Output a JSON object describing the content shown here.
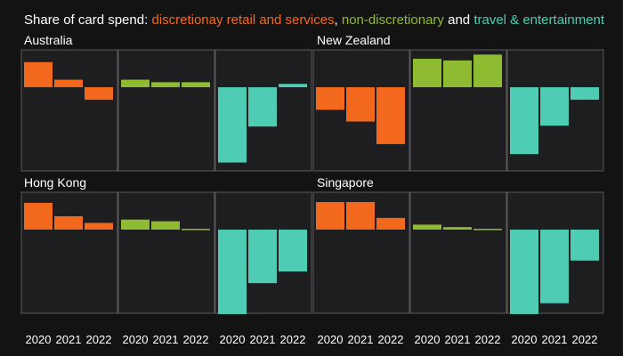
{
  "chart_data": {
    "type": "bar",
    "title": {
      "prefix": "Share of card spend: ",
      "series_1": "discretionay retail and services",
      "sep_1": ", ",
      "series_2": "non-discretionary",
      "sep_2": " and ",
      "series_3": "travel & entertainment"
    },
    "categories": [
      "2020",
      "2021",
      "2022"
    ],
    "ylim": [
      -10,
      4
    ],
    "colors": {
      "background": "#131313",
      "panel": "#1e1d1f",
      "frame": "#5a5a5a",
      "text": "#ffffff",
      "discretionary": "#f2691e",
      "non_discretionary": "#8fbb32",
      "travel": "#4ecdb4"
    },
    "regions": [
      {
        "name": "Australia",
        "series": [
          {
            "name": "discretionay retail and services",
            "values": [
              3.0,
              0.9,
              -1.5
            ]
          },
          {
            "name": "non-discretionary",
            "values": [
              0.9,
              0.6,
              0.6
            ]
          },
          {
            "name": "travel & entertainment",
            "values": [
              -9.0,
              -4.7,
              0.4
            ]
          }
        ]
      },
      {
        "name": "New Zealand",
        "series": [
          {
            "name": "discretionay retail and services",
            "values": [
              -2.7,
              -4.1,
              -6.8
            ]
          },
          {
            "name": "non-discretionary",
            "values": [
              3.4,
              3.2,
              3.9
            ]
          },
          {
            "name": "travel & entertainment",
            "values": [
              -8.0,
              -4.6,
              -1.5
            ]
          }
        ]
      },
      {
        "name": "Hong Kong",
        "series": [
          {
            "name": "discretionay retail and services",
            "values": [
              3.2,
              1.6,
              0.8
            ]
          },
          {
            "name": "non-discretionary",
            "values": [
              1.2,
              1.0,
              0.1
            ]
          },
          {
            "name": "travel & entertainment",
            "values": [
              -10.1,
              -6.4,
              -5.0
            ]
          }
        ]
      },
      {
        "name": "Singapore",
        "series": [
          {
            "name": "discretionay retail and services",
            "values": [
              3.3,
              3.3,
              1.4
            ]
          },
          {
            "name": "non-discretionary",
            "values": [
              0.6,
              0.3,
              0.1
            ]
          },
          {
            "name": "travel & entertainment",
            "values": [
              -10.1,
              -8.8,
              -3.7
            ]
          }
        ]
      }
    ]
  }
}
